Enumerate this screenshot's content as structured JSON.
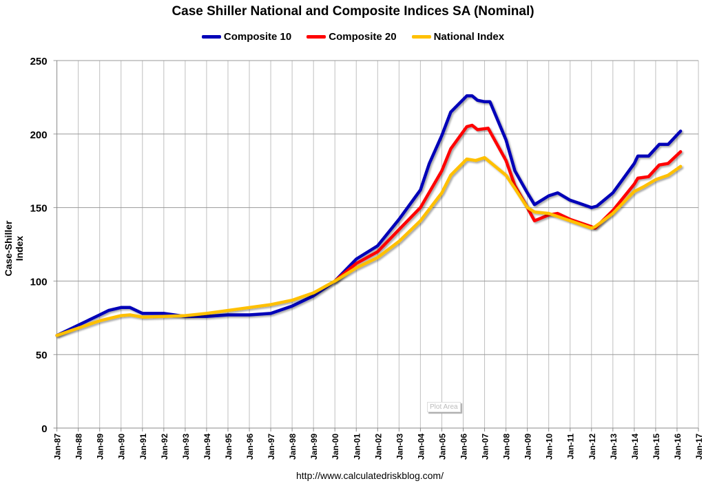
{
  "chart_data": {
    "type": "line",
    "title": "Case Shiller National and Composite Indices SA (Nominal)",
    "xlabel": "",
    "ylabel": "Case-Shiller Index",
    "ylim": [
      0,
      250
    ],
    "yticks": [
      0,
      50,
      100,
      150,
      200,
      250
    ],
    "xticks": [
      "Jan-87",
      "Jan-88",
      "Jan-89",
      "Jan-90",
      "Jan-91",
      "Jan-92",
      "Jan-93",
      "Jan-94",
      "Jan-95",
      "Jan-96",
      "Jan-97",
      "Jan-98",
      "Jan-99",
      "Jan-00",
      "Jan-01",
      "Jan-02",
      "Jan-03",
      "Jan-04",
      "Jan-05",
      "Jan-06",
      "Jan-07",
      "Jan-08",
      "Jan-09",
      "Jan-10",
      "Jan-11",
      "Jan-12",
      "Jan-13",
      "Jan-14",
      "Jan-15",
      "Jan-16",
      "Jan-17"
    ],
    "xlim": [
      "1987-01",
      "2017-01"
    ],
    "grid": true,
    "legend": "top",
    "series": [
      {
        "name": "Composite 10",
        "color": "#0000b8",
        "points": [
          [
            "1987-01",
            63
          ],
          [
            "1988-01",
            70
          ],
          [
            "1989-01",
            77
          ],
          [
            "1989-06",
            80
          ],
          [
            "1990-01",
            82
          ],
          [
            "1990-06",
            82
          ],
          [
            "1991-01",
            78
          ],
          [
            "1991-06",
            78
          ],
          [
            "1992-01",
            78
          ],
          [
            "1993-01",
            76
          ],
          [
            "1994-01",
            76
          ],
          [
            "1995-01",
            77
          ],
          [
            "1996-01",
            77
          ],
          [
            "1997-01",
            78
          ],
          [
            "1998-01",
            83
          ],
          [
            "1999-01",
            90
          ],
          [
            "2000-01",
            100
          ],
          [
            "2001-01",
            115
          ],
          [
            "2002-01",
            124
          ],
          [
            "2003-01",
            142
          ],
          [
            "2004-01",
            162
          ],
          [
            "2004-06",
            180
          ],
          [
            "2005-01",
            199
          ],
          [
            "2005-06",
            215
          ],
          [
            "2006-03",
            226
          ],
          [
            "2006-06",
            226
          ],
          [
            "2006-09",
            223
          ],
          [
            "2007-01",
            222
          ],
          [
            "2007-04",
            222
          ],
          [
            "2008-01",
            196
          ],
          [
            "2008-06",
            175
          ],
          [
            "2009-01",
            160
          ],
          [
            "2009-05",
            152
          ],
          [
            "2010-01",
            158
          ],
          [
            "2010-06",
            160
          ],
          [
            "2011-01",
            155
          ],
          [
            "2011-06",
            153
          ],
          [
            "2012-01",
            150
          ],
          [
            "2012-04",
            151
          ],
          [
            "2013-01",
            160
          ],
          [
            "2014-01",
            180
          ],
          [
            "2014-03",
            185
          ],
          [
            "2014-09",
            185
          ],
          [
            "2015-03",
            193
          ],
          [
            "2015-08",
            193
          ],
          [
            "2016-03",
            202
          ]
        ]
      },
      {
        "name": "Composite 20",
        "color": "#ff0000",
        "points": [
          [
            "2000-01",
            100
          ],
          [
            "2001-01",
            112
          ],
          [
            "2002-01",
            120
          ],
          [
            "2003-01",
            135
          ],
          [
            "2004-01",
            150
          ],
          [
            "2005-01",
            175
          ],
          [
            "2005-06",
            190
          ],
          [
            "2006-03",
            205
          ],
          [
            "2006-06",
            206
          ],
          [
            "2006-09",
            203
          ],
          [
            "2007-03",
            204
          ],
          [
            "2008-01",
            182
          ],
          [
            "2008-06",
            165
          ],
          [
            "2009-01",
            150
          ],
          [
            "2009-05",
            141
          ],
          [
            "2010-01",
            145
          ],
          [
            "2010-06",
            146
          ],
          [
            "2011-01",
            142
          ],
          [
            "2012-01",
            137
          ],
          [
            "2012-03",
            136
          ],
          [
            "2013-01",
            148
          ],
          [
            "2014-01",
            166
          ],
          [
            "2014-03",
            170
          ],
          [
            "2014-09",
            171
          ],
          [
            "2015-03",
            179
          ],
          [
            "2015-08",
            180
          ],
          [
            "2016-03",
            188
          ]
        ]
      },
      {
        "name": "National Index",
        "color": "#ffc000",
        "points": [
          [
            "1987-01",
            63
          ],
          [
            "1988-01",
            68
          ],
          [
            "1989-01",
            73
          ],
          [
            "1990-01",
            76.5
          ],
          [
            "1990-06",
            77
          ],
          [
            "1991-01",
            75.5
          ],
          [
            "1992-01",
            76
          ],
          [
            "1993-01",
            76.5
          ],
          [
            "1994-01",
            78
          ],
          [
            "1995-01",
            80
          ],
          [
            "1996-01",
            82
          ],
          [
            "1997-01",
            84
          ],
          [
            "1998-01",
            87
          ],
          [
            "1999-01",
            92
          ],
          [
            "2000-01",
            100
          ],
          [
            "2001-01",
            109
          ],
          [
            "2002-01",
            116
          ],
          [
            "2003-01",
            127
          ],
          [
            "2004-01",
            141
          ],
          [
            "2005-01",
            160
          ],
          [
            "2005-06",
            172
          ],
          [
            "2006-03",
            183
          ],
          [
            "2006-08",
            182
          ],
          [
            "2007-01",
            184
          ],
          [
            "2008-01",
            172
          ],
          [
            "2008-06",
            163
          ],
          [
            "2009-01",
            150
          ],
          [
            "2009-05",
            147
          ],
          [
            "2010-01",
            146
          ],
          [
            "2011-01",
            141
          ],
          [
            "2012-01",
            136
          ],
          [
            "2012-03",
            137
          ],
          [
            "2013-01",
            146
          ],
          [
            "2014-01",
            161
          ],
          [
            "2014-06",
            164
          ],
          [
            "2015-01",
            169
          ],
          [
            "2015-08",
            172
          ],
          [
            "2016-03",
            178
          ]
        ]
      }
    ]
  },
  "source": "http://www.calculatedriskblog.com/",
  "plot_area_tooltip": "Plot Area"
}
